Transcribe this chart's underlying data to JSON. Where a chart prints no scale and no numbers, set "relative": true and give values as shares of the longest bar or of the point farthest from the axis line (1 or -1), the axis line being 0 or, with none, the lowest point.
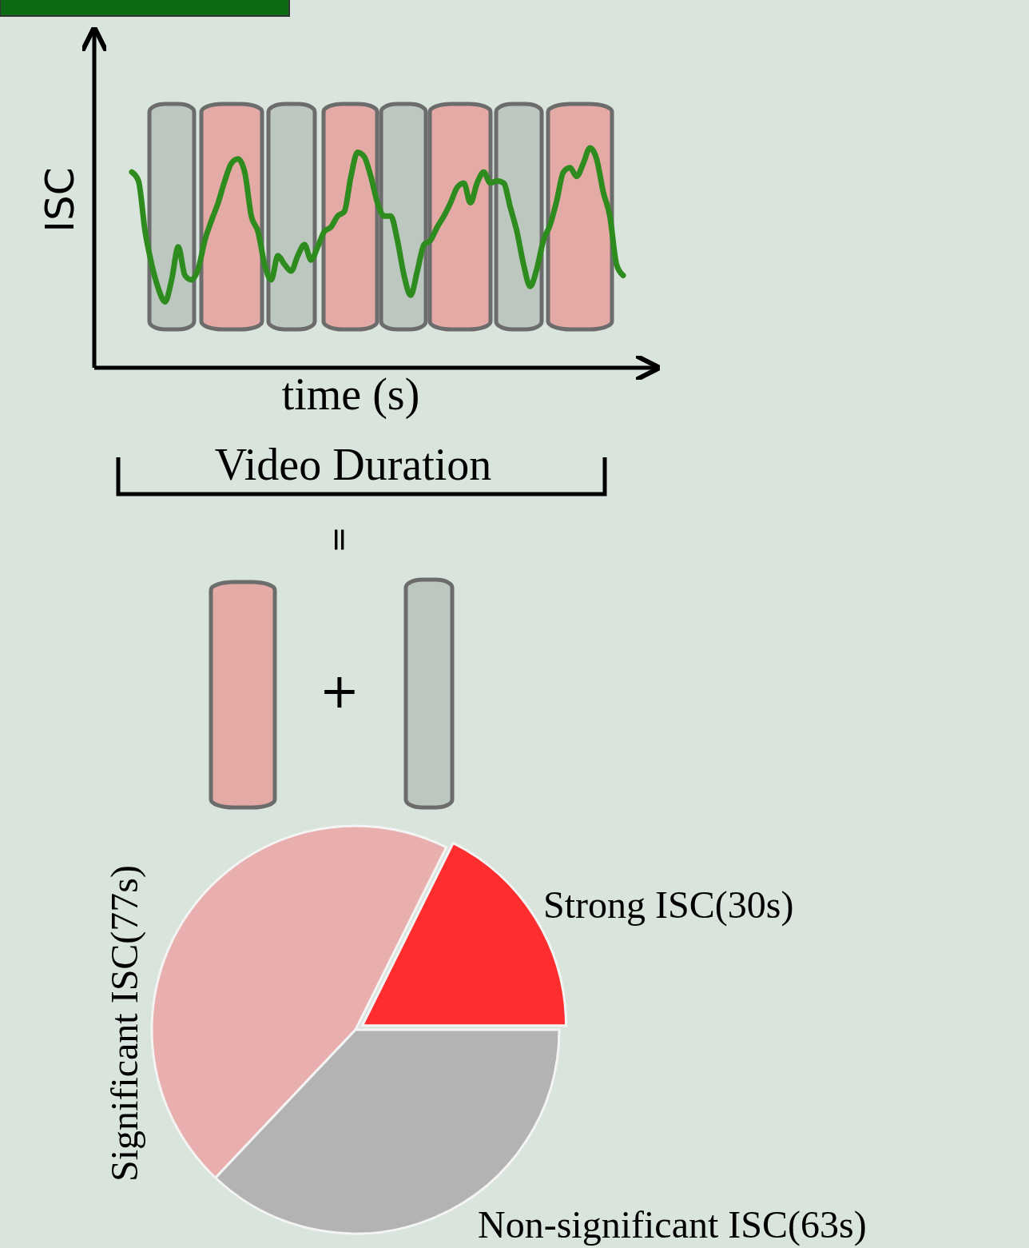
{
  "chart_data": [
    {
      "type": "line",
      "xlabel": "time (s)",
      "ylabel": "ISC",
      "relative": true,
      "categories": [
        null,
        null,
        null,
        null,
        null,
        null,
        null,
        null,
        null,
        null,
        null,
        null,
        null,
        null,
        null,
        null,
        null,
        null,
        null,
        null,
        null,
        null,
        null,
        null,
        null,
        null,
        null,
        null,
        null,
        null,
        null,
        null,
        null,
        null,
        null,
        null,
        null,
        null,
        null,
        null,
        null,
        null,
        null,
        null,
        null,
        null,
        null,
        null,
        null,
        null,
        null,
        null,
        null,
        null,
        null,
        null,
        null,
        null,
        null,
        null,
        null,
        null,
        null,
        null,
        null,
        null,
        null,
        null,
        null,
        null,
        null,
        null,
        null,
        null,
        null
      ],
      "series": [
        {
          "color": "#2e8b1e",
          "values": [
            0.89,
            0.85,
            0.62,
            0.47,
            0.36,
            0.3,
            0.4,
            0.55,
            0.42,
            0.4,
            0.45,
            0.58,
            0.67,
            0.75,
            0.85,
            0.93,
            0.95,
            0.89,
            0.69,
            0.62,
            0.47,
            0.4,
            0.51,
            0.47,
            0.44,
            0.51,
            0.56,
            0.49,
            0.55,
            0.62,
            0.64,
            0.69,
            0.71,
            0.87,
            0.98,
            0.96,
            0.87,
            0.75,
            0.69,
            0.69,
            0.58,
            0.42,
            0.33,
            0.44,
            0.56,
            0.58,
            0.64,
            0.69,
            0.75,
            0.82,
            0.84,
            0.75,
            0.84,
            0.89,
            0.84,
            0.85,
            0.84,
            0.73,
            0.62,
            0.47,
            0.37,
            0.45,
            0.58,
            0.65,
            0.76,
            0.89,
            0.91,
            0.87,
            0.93,
            1,
            0.95,
            0.8,
            0.69,
            0.47,
            0.42
          ]
        }
      ],
      "annotations": [
        "Video Duration",
        "=",
        "+"
      ]
    },
    {
      "type": "pie",
      "categories": [
        "Strong ISC(30s)",
        "Significant ISC(77s)",
        "Non-significant ISC(63s)"
      ],
      "values": [
        30,
        77,
        63
      ],
      "colors": [
        "#ff2e2e",
        "#e9aeae",
        "#b3b3b3"
      ]
    }
  ]
}
